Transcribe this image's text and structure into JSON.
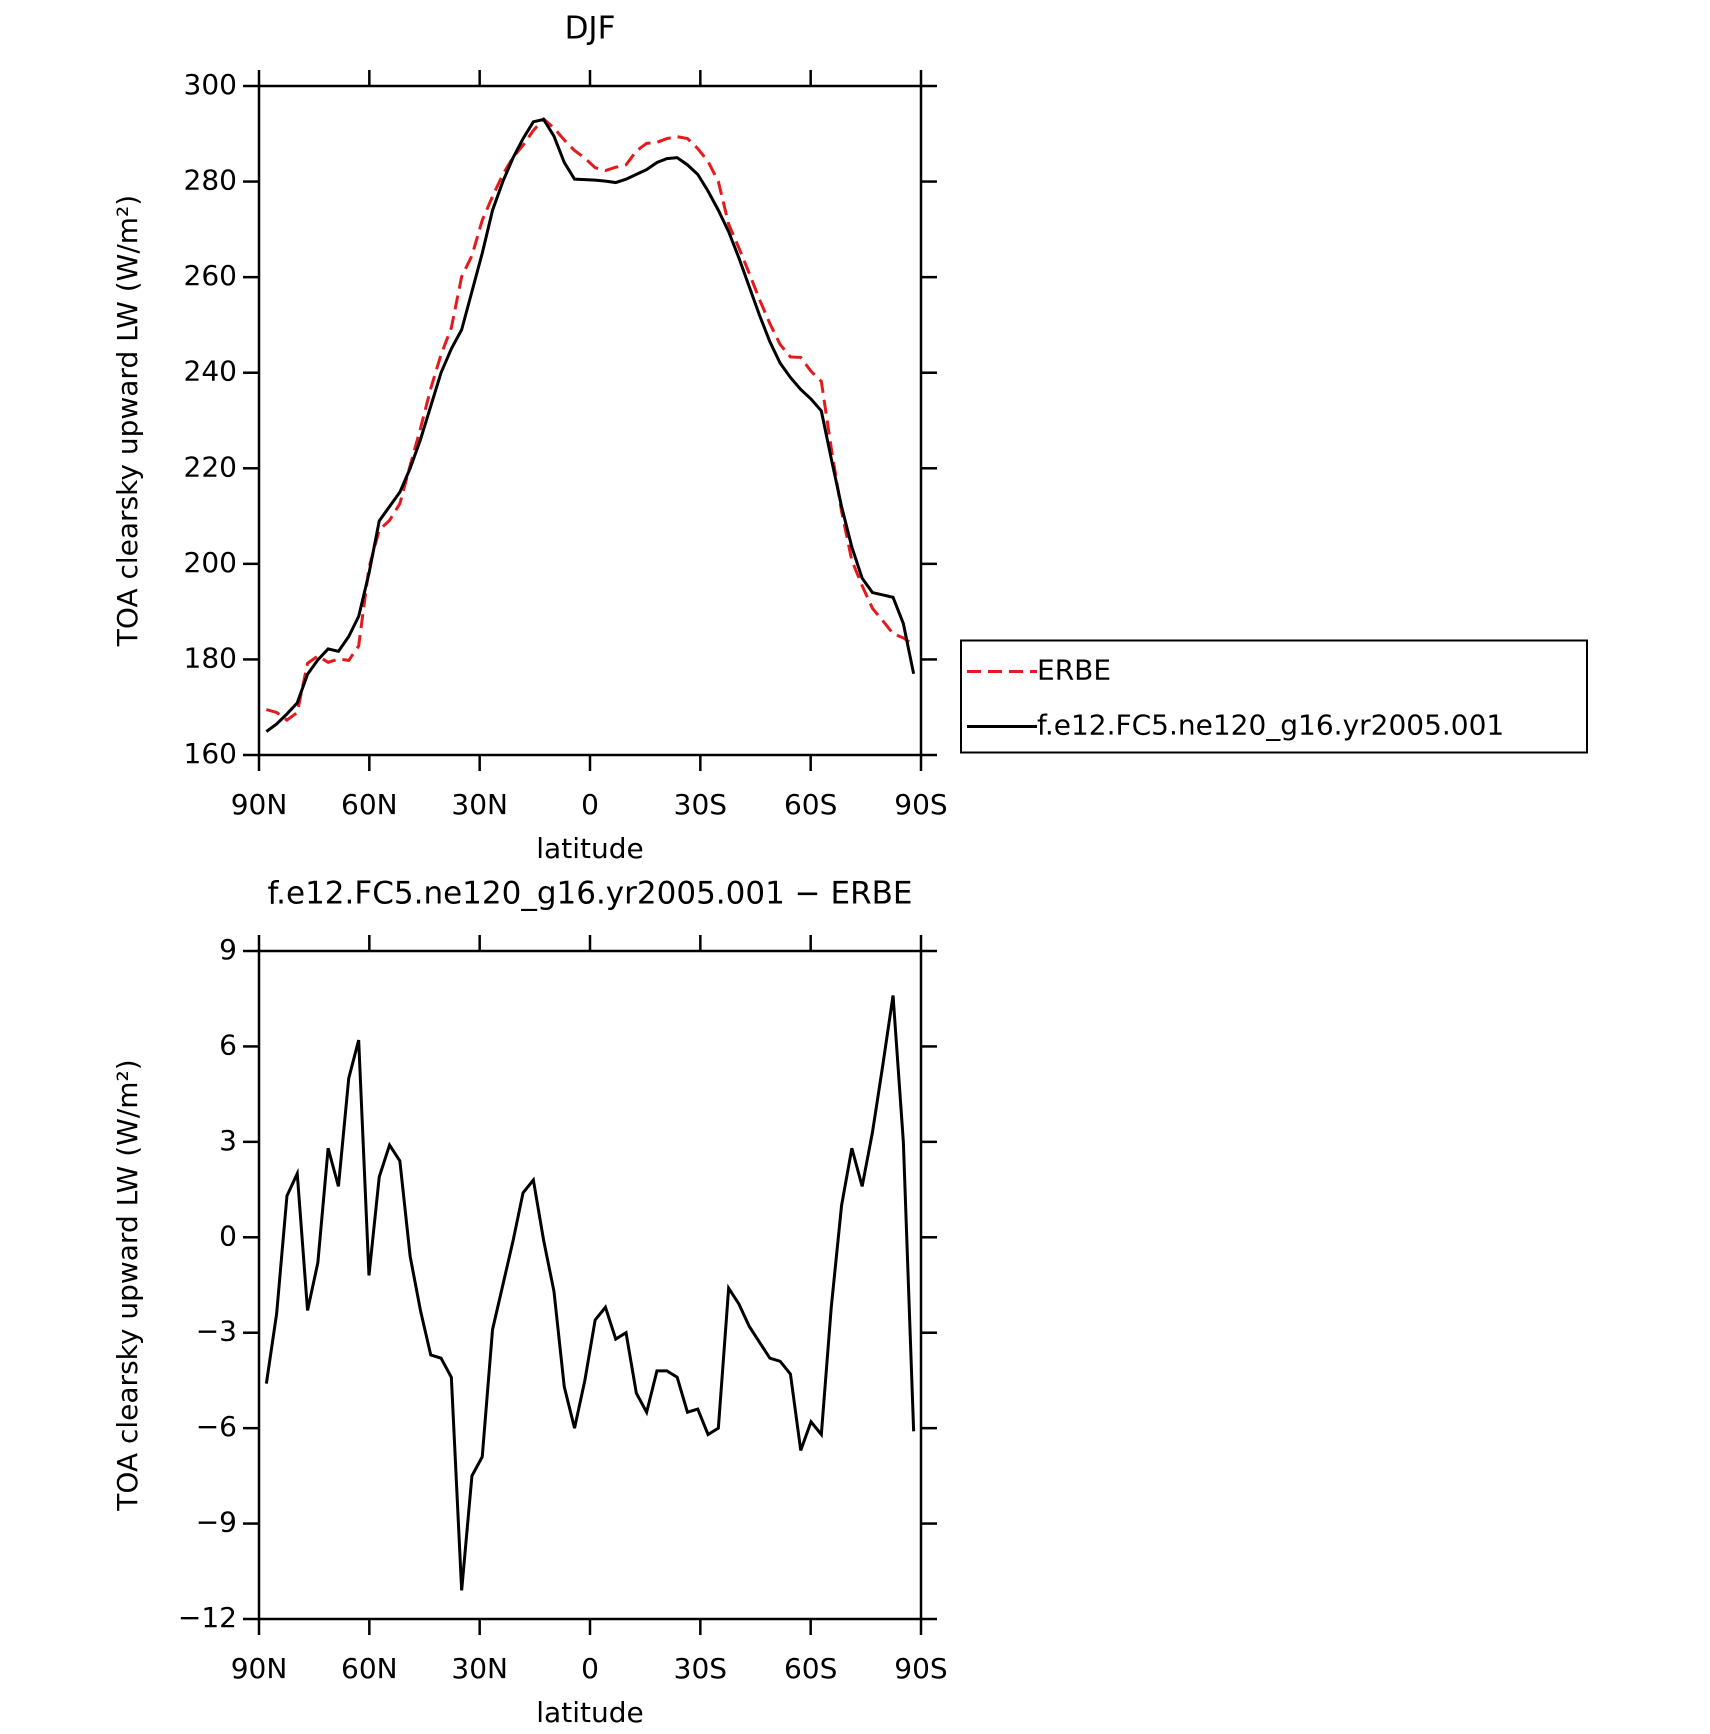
{
  "chart_data": [
    {
      "type": "line",
      "title": "DJF",
      "xlabel": "latitude",
      "ylabel": "TOA clearsky upward LW (W/m²)",
      "x": [
        88,
        85.2,
        82.4,
        79.6,
        76.8,
        74.0,
        71.2,
        68.4,
        65.6,
        62.9,
        60.1,
        57.3,
        54.5,
        51.7,
        48.9,
        46.1,
        43.3,
        40.5,
        37.7,
        34.9,
        32.1,
        29.3,
        26.5,
        23.7,
        20.9,
        18.2,
        15.4,
        12.6,
        9.8,
        7.0,
        4.2,
        1.4,
        -1.4,
        -4.2,
        -7.0,
        -9.8,
        -12.6,
        -15.4,
        -18.2,
        -20.9,
        -23.7,
        -26.5,
        -29.3,
        -32.1,
        -34.9,
        -37.7,
        -40.5,
        -43.3,
        -46.1,
        -48.9,
        -51.7,
        -54.5,
        -57.3,
        -60.1,
        -62.9,
        -65.6,
        -68.4,
        -71.2,
        -74.0,
        -76.8,
        -79.6,
        -82.4,
        -85.2,
        -88
      ],
      "series": [
        {
          "name": "ERBE",
          "color": "#e41a1c",
          "line_style": "dashed",
          "values": [
            169.5,
            168.9,
            167.3,
            168.9,
            179.2,
            180.7,
            179.4,
            180.1,
            179.8,
            182.8,
            199.2,
            207.1,
            209.1,
            212.6,
            220.6,
            228.3,
            236.7,
            243.8,
            249.4,
            260.1,
            264.5,
            271.9,
            276.9,
            281.5,
            285.1,
            287.6,
            290.7,
            293.1,
            291.2,
            288.7,
            286.5,
            284.9,
            282.9,
            282.3,
            283.0,
            283.5,
            286.4,
            288.0,
            288.2,
            289.0,
            289.4,
            289.0,
            286.9,
            284.2,
            280.0,
            271.1,
            266.1,
            260.8,
            255.3,
            250.3,
            245.9,
            243.3,
            243.2,
            240.3,
            238.2,
            224.2,
            211.0,
            200.7,
            195.4,
            190.7,
            188.1,
            185.4,
            184.5,
            183.1
          ]
        },
        {
          "name": "f.e12.FC5.ne120_g16.yr2005.001",
          "color": "#000000",
          "line_style": "solid",
          "values": [
            164.9,
            166.5,
            168.6,
            170.9,
            176.9,
            179.9,
            182.2,
            181.7,
            184.8,
            189,
            198,
            209,
            212,
            215,
            220,
            226,
            233,
            240,
            245,
            249,
            257,
            265,
            274,
            280,
            285,
            289,
            292.5,
            293,
            289.5,
            284,
            280.5,
            280.4,
            280.3,
            280.1,
            279.8,
            280.5,
            281.5,
            282.5,
            284,
            284.8,
            285,
            283.5,
            281.5,
            278,
            274,
            269.5,
            264,
            258,
            252,
            246.5,
            242,
            239,
            236.5,
            234.5,
            232,
            222,
            212,
            203.5,
            197,
            194,
            193.5,
            193,
            187.5,
            177
          ]
        }
      ],
      "xlim": [
        90,
        -90
      ],
      "xticks": [
        {
          "value": 90,
          "label": "90N"
        },
        {
          "value": 60,
          "label": "60N"
        },
        {
          "value": 30,
          "label": "30N"
        },
        0,
        {
          "value": -30,
          "label": "30S"
        },
        {
          "value": -60,
          "label": "60S"
        },
        {
          "value": -90,
          "label": "90S"
        }
      ],
      "ylim": [
        160,
        300
      ],
      "yticks": [
        160,
        180,
        200,
        220,
        240,
        260,
        280,
        300
      ],
      "legend": "right"
    },
    {
      "type": "line",
      "title": "f.e12.FC5.ne120_g16.yr2005.001 − ERBE",
      "xlabel": "latitude",
      "ylabel": "TOA clearsky upward LW (W/m²)",
      "x": [
        88,
        85.2,
        82.4,
        79.6,
        76.8,
        74.0,
        71.2,
        68.4,
        65.6,
        62.9,
        60.1,
        57.3,
        54.5,
        51.7,
        48.9,
        46.1,
        43.3,
        40.5,
        37.7,
        34.9,
        32.1,
        29.3,
        26.5,
        23.7,
        20.9,
        18.2,
        15.4,
        12.6,
        9.8,
        7.0,
        4.2,
        1.4,
        -1.4,
        -4.2,
        -7.0,
        -9.8,
        -12.6,
        -15.4,
        -18.2,
        -20.9,
        -23.7,
        -26.5,
        -29.3,
        -32.1,
        -34.9,
        -37.7,
        -40.5,
        -43.3,
        -46.1,
        -48.9,
        -51.7,
        -54.5,
        -57.3,
        -60.1,
        -62.9,
        -65.6,
        -68.4,
        -71.2,
        -74.0,
        -76.8,
        -79.6,
        -82.4,
        -85.2,
        -88
      ],
      "series": [
        {
          "color": "#000000",
          "line_style": "solid",
          "values": [
            -4.6,
            -2.4,
            1.3,
            2.0,
            -2.3,
            -0.8,
            2.8,
            1.6,
            5.0,
            6.2,
            -1.2,
            1.9,
            2.9,
            2.4,
            -0.6,
            -2.3,
            -3.7,
            -3.8,
            -4.4,
            -11.1,
            -7.5,
            -6.9,
            -2.9,
            -1.5,
            -0.1,
            1.4,
            1.8,
            -0.1,
            -1.7,
            -4.7,
            -6.0,
            -4.5,
            -2.6,
            -2.2,
            -3.2,
            -3.0,
            -4.9,
            -5.5,
            -4.2,
            -4.2,
            -4.4,
            -5.5,
            -5.4,
            -6.2,
            -6.0,
            -1.6,
            -2.1,
            -2.8,
            -3.3,
            -3.8,
            -3.9,
            -4.3,
            -6.7,
            -5.8,
            -6.2,
            -2.2,
            1.0,
            2.8,
            1.6,
            3.3,
            5.4,
            7.6,
            3.0,
            -6.1
          ]
        }
      ],
      "xlim": [
        90,
        -90
      ],
      "xticks": [
        {
          "value": 90,
          "label": "90N"
        },
        {
          "value": 60,
          "label": "60N"
        },
        {
          "value": 30,
          "label": "30N"
        },
        0,
        {
          "value": -30,
          "label": "30S"
        },
        {
          "value": -60,
          "label": "60S"
        },
        {
          "value": -90,
          "label": "90S"
        }
      ],
      "ylim": [
        -12,
        9
      ],
      "yticks": [
        {
          "value": -12,
          "label": "−12"
        },
        {
          "value": -9,
          "label": "−9"
        },
        {
          "value": -6,
          "label": "−6"
        },
        {
          "value": -3,
          "label": "−3"
        },
        0,
        3,
        6,
        9
      ]
    }
  ]
}
